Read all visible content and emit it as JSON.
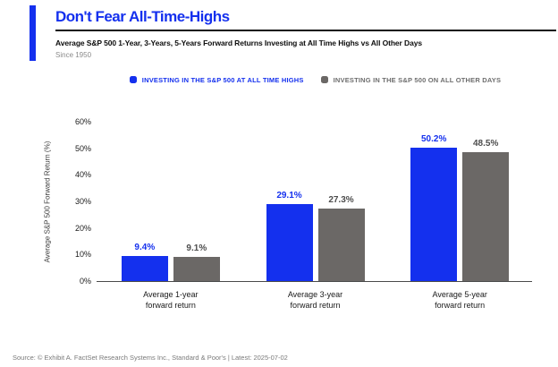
{
  "header": {
    "title": "Don't Fear All-Time-Highs",
    "subtitle": "Average S&P 500 1-Year, 3-Years, 5-Years Forward Returns Investing at All Time Highs vs All Other Days",
    "period": "Since 1950"
  },
  "colors": {
    "accent_blue": "#1430EE",
    "bar_gray": "#6B6866",
    "rule_dark": "#111111"
  },
  "legend": {
    "items": [
      {
        "label": "INVESTING IN THE S&P 500 AT ALL TIME HIGHS",
        "marker_color": "#1430EE",
        "text_color": "#1430EE"
      },
      {
        "label": "INVESTING IN THE S&P 500 ON ALL OTHER DAYS",
        "marker_color": "#6B6866",
        "text_color": "#6E6E6E"
      }
    ]
  },
  "chart_data": {
    "type": "bar",
    "categories": [
      [
        "Average 1-year",
        "forward return"
      ],
      [
        "Average 3-year",
        "forward return"
      ],
      [
        "Average 5-year",
        "forward return"
      ]
    ],
    "series": [
      {
        "name": "INVESTING IN THE S&P 500 AT ALL TIME HIGHS",
        "color": "#1430EE",
        "label_color": "#1430EE",
        "values": [
          9.4,
          29.1,
          50.2
        ],
        "value_labels": [
          "9.4%",
          "29.1%",
          "50.2%"
        ]
      },
      {
        "name": "INVESTING IN THE S&P 500 ON ALL OTHER DAYS",
        "color": "#6B6866",
        "label_color": "#4D4D4D",
        "values": [
          9.1,
          27.3,
          48.5
        ],
        "value_labels": [
          "9.1%",
          "27.3%",
          "48.5%"
        ]
      }
    ],
    "title": "Don't Fear All-Time-Highs",
    "xlabel": "",
    "ylabel": "Average S&P 500 Forward Return (%)",
    "yticks": [
      0,
      10,
      20,
      30,
      40,
      50,
      60
    ],
    "ytick_labels": [
      "0%",
      "10%",
      "20%",
      "30%",
      "40%",
      "50%",
      "60%"
    ],
    "ylim": [
      0,
      60
    ],
    "grid": false,
    "legend_position": "top"
  },
  "footer": {
    "source": "Source: © Exhibit A. FactSet Research Systems Inc., Standard & Poor's | Latest: 2025-07-02"
  }
}
